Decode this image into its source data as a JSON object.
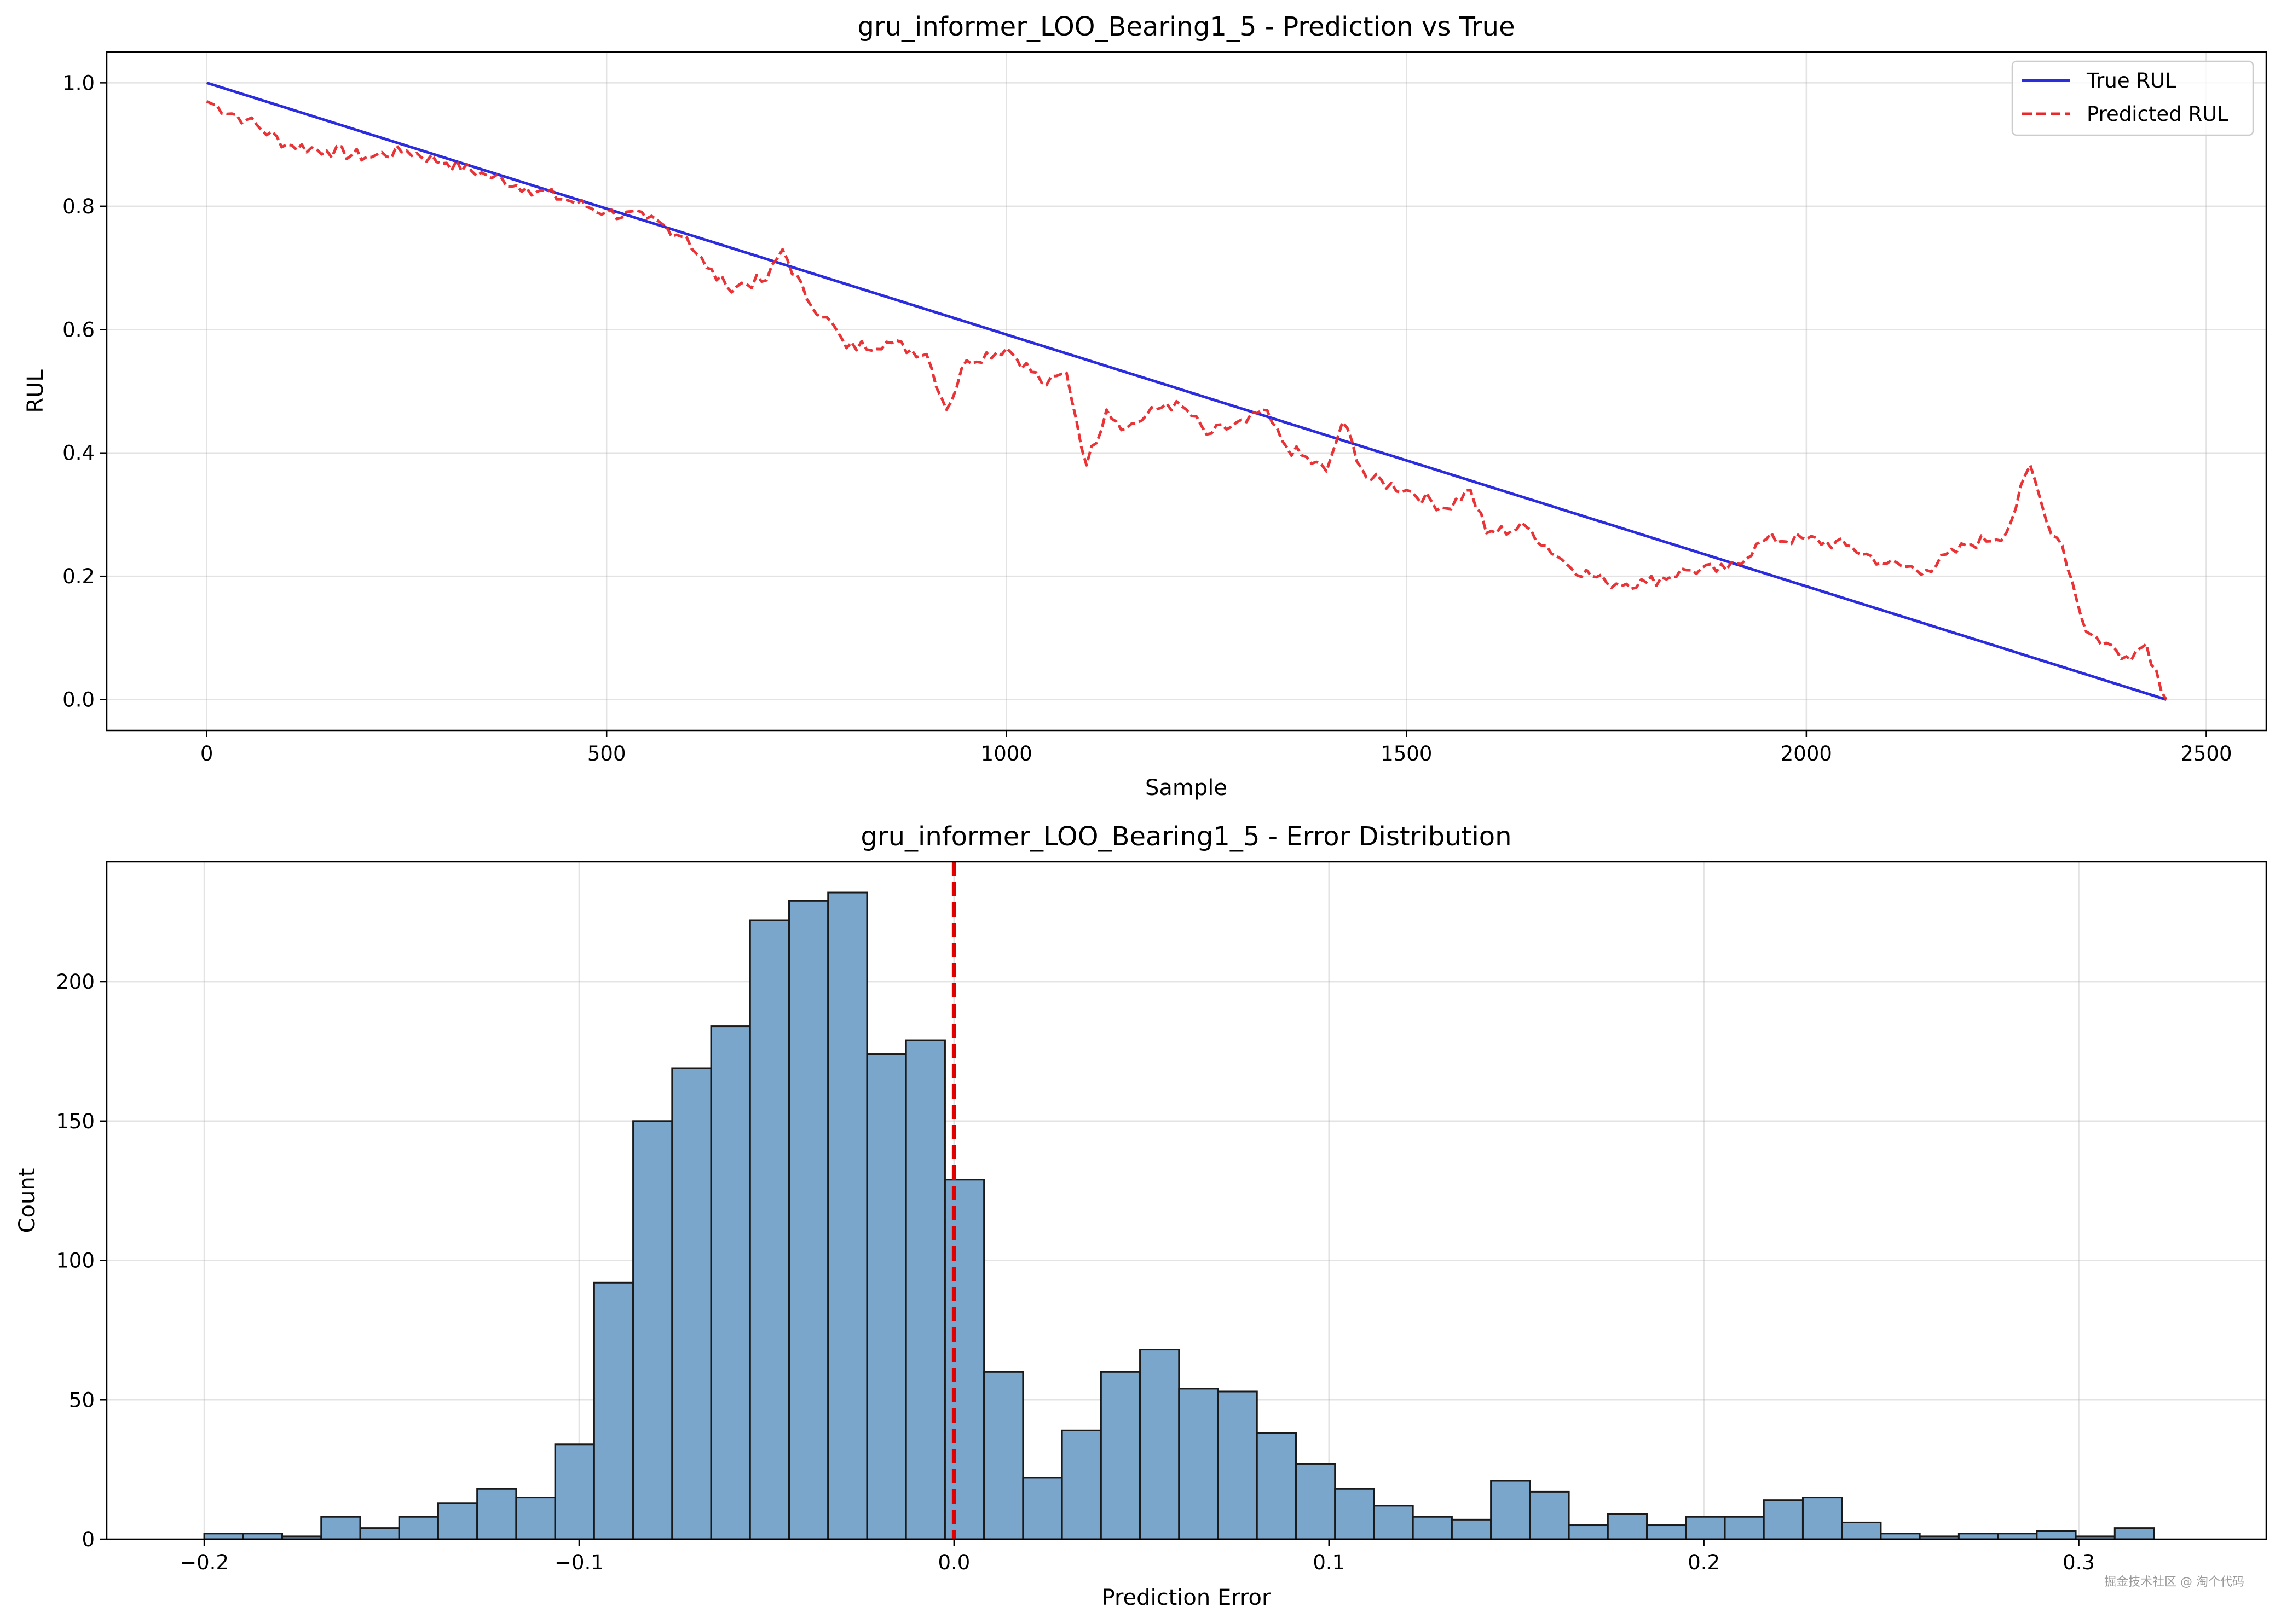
{
  "colors": {
    "true_line": "#2b2be0",
    "pred_line": "#e8282b",
    "bar_fill": "#7aa6cc",
    "bar_edge": "#1a1a1a",
    "zero_line": "#e00000"
  },
  "watermark": "掘金技术社区 @ 淘个代码",
  "chart_data": [
    {
      "type": "line",
      "title": "gru_informer_LOO_Bearing1_5 - Prediction vs True",
      "xlabel": "Sample",
      "ylabel": "RUL",
      "xlim": [
        -125,
        2575
      ],
      "ylim": [
        -0.05,
        1.05
      ],
      "xticks": [
        0,
        500,
        1000,
        1500,
        2000,
        2500
      ],
      "xtick_labels": [
        "0",
        "500",
        "1000",
        "1500",
        "2000",
        "2500"
      ],
      "yticks": [
        0.0,
        0.2,
        0.4,
        0.6,
        0.8,
        1.0
      ],
      "ytick_labels": [
        "0.0",
        "0.2",
        "0.4",
        "0.6",
        "0.8",
        "1.0"
      ],
      "grid": true,
      "legend": {
        "position": "top-right",
        "entries": [
          "True RUL",
          "Predicted RUL"
        ]
      },
      "series": [
        {
          "name": "True RUL",
          "style": "solid",
          "x": [
            0,
            2450
          ],
          "y": [
            1.0,
            0.0
          ]
        },
        {
          "name": "Predicted RUL",
          "style": "dashed",
          "x": [
            0,
            50,
            100,
            150,
            200,
            250,
            300,
            350,
            400,
            450,
            500,
            550,
            600,
            625,
            650,
            700,
            720,
            750,
            775,
            800,
            850,
            900,
            925,
            950,
            1000,
            1050,
            1075,
            1100,
            1125,
            1150,
            1200,
            1225,
            1250,
            1300,
            1320,
            1350,
            1400,
            1420,
            1450,
            1500,
            1550,
            1580,
            1600,
            1650,
            1700,
            1750,
            1800,
            1850,
            1900,
            1950,
            2000,
            2050,
            2100,
            2150,
            2200,
            2250,
            2280,
            2300,
            2320,
            2350,
            2400,
            2425,
            2450
          ],
          "y": [
            0.97,
            0.94,
            0.9,
            0.89,
            0.88,
            0.89,
            0.87,
            0.85,
            0.83,
            0.81,
            0.79,
            0.78,
            0.75,
            0.7,
            0.67,
            0.68,
            0.73,
            0.65,
            0.62,
            0.57,
            0.58,
            0.56,
            0.47,
            0.55,
            0.57,
            0.51,
            0.53,
            0.38,
            0.47,
            0.44,
            0.48,
            0.47,
            0.43,
            0.45,
            0.47,
            0.41,
            0.37,
            0.45,
            0.36,
            0.34,
            0.31,
            0.34,
            0.27,
            0.28,
            0.22,
            0.19,
            0.19,
            0.21,
            0.21,
            0.26,
            0.26,
            0.25,
            0.22,
            0.21,
            0.25,
            0.27,
            0.38,
            0.29,
            0.25,
            0.11,
            0.07,
            0.09,
            0.0
          ]
        }
      ]
    },
    {
      "type": "bar",
      "title": "gru_informer_LOO_Bearing1_5 - Error Distribution",
      "xlabel": "Prediction Error",
      "ylabel": "Count",
      "xlim": [
        -0.226,
        0.35
      ],
      "ylim": [
        0,
        243
      ],
      "xticks": [
        -0.2,
        -0.1,
        0.0,
        0.1,
        0.2,
        0.3
      ],
      "xtick_labels": [
        "−0.2",
        "−0.1",
        "0.0",
        "0.1",
        "0.2",
        "0.3"
      ],
      "yticks": [
        0,
        50,
        100,
        150,
        200
      ],
      "ytick_labels": [
        "0",
        "50",
        "100",
        "150",
        "200"
      ],
      "grid": true,
      "bin_start": -0.2,
      "bin_width": 0.0104,
      "values": [
        2,
        2,
        1,
        8,
        4,
        8,
        13,
        18,
        15,
        34,
        92,
        150,
        169,
        184,
        222,
        229,
        232,
        174,
        179,
        129,
        60,
        22,
        39,
        60,
        68,
        54,
        53,
        38,
        27,
        18,
        12,
        8,
        7,
        21,
        17,
        5,
        9,
        5,
        8,
        8,
        14,
        15,
        6,
        2,
        1,
        2,
        2,
        3,
        1,
        4
      ],
      "vline": {
        "x": 0.0,
        "style": "dashed"
      }
    }
  ]
}
